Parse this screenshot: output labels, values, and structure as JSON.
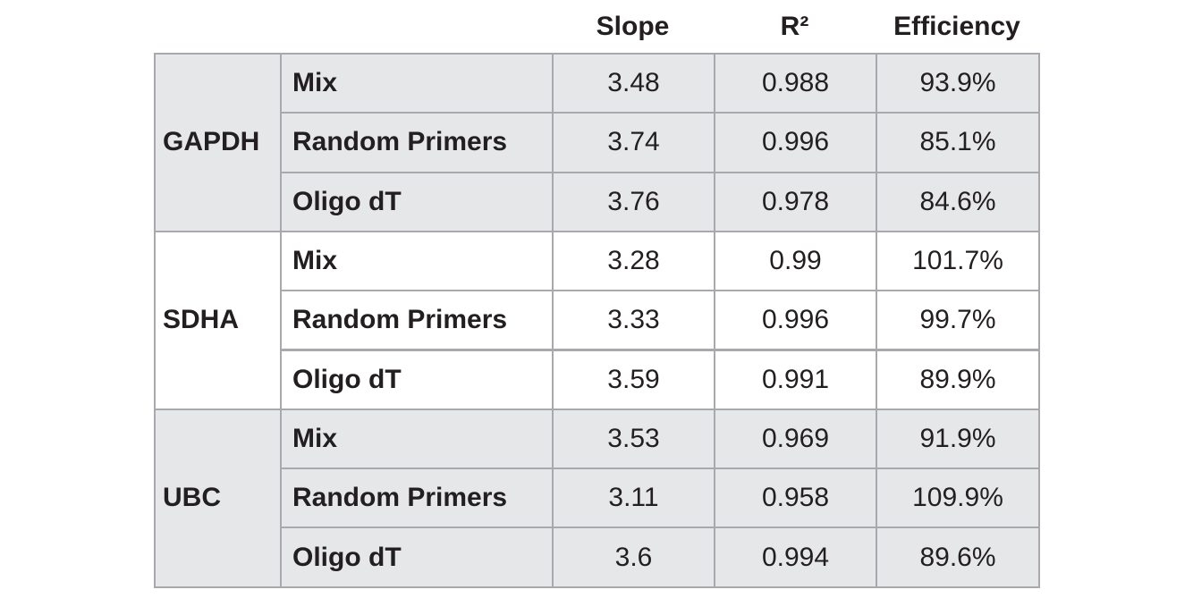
{
  "header": {
    "columns": [
      "Slope",
      "R²",
      "Efficiency"
    ]
  },
  "groups": [
    {
      "name": "GAPDH",
      "rows": [
        {
          "label": "Mix",
          "values": [
            "3.48",
            "0.988",
            "93.9%"
          ]
        },
        {
          "label": "Random Primers",
          "values": [
            "3.74",
            "0.996",
            "85.1%"
          ]
        },
        {
          "label": "Oligo dT",
          "values": [
            "3.76",
            "0.978",
            "84.6%"
          ]
        }
      ]
    },
    {
      "name": "SDHA",
      "rows": [
        {
          "label": "Mix",
          "values": [
            "3.28",
            "0.99",
            "101.7%"
          ]
        },
        {
          "label": "Random Primers",
          "values": [
            "3.33",
            "0.996",
            "99.7%"
          ]
        },
        {
          "label": "Oligo dT",
          "values": [
            "3.59",
            "0.991",
            "89.9%"
          ]
        }
      ]
    },
    {
      "name": "UBC",
      "rows": [
        {
          "label": "Mix",
          "values": [
            "3.53",
            "0.969",
            "91.9%"
          ]
        },
        {
          "label": "Random Primers",
          "values": [
            "3.11",
            "0.958",
            "109.9%"
          ]
        },
        {
          "label": "Oligo dT",
          "values": [
            "3.6",
            "0.994",
            "89.6%"
          ]
        }
      ]
    }
  ]
}
